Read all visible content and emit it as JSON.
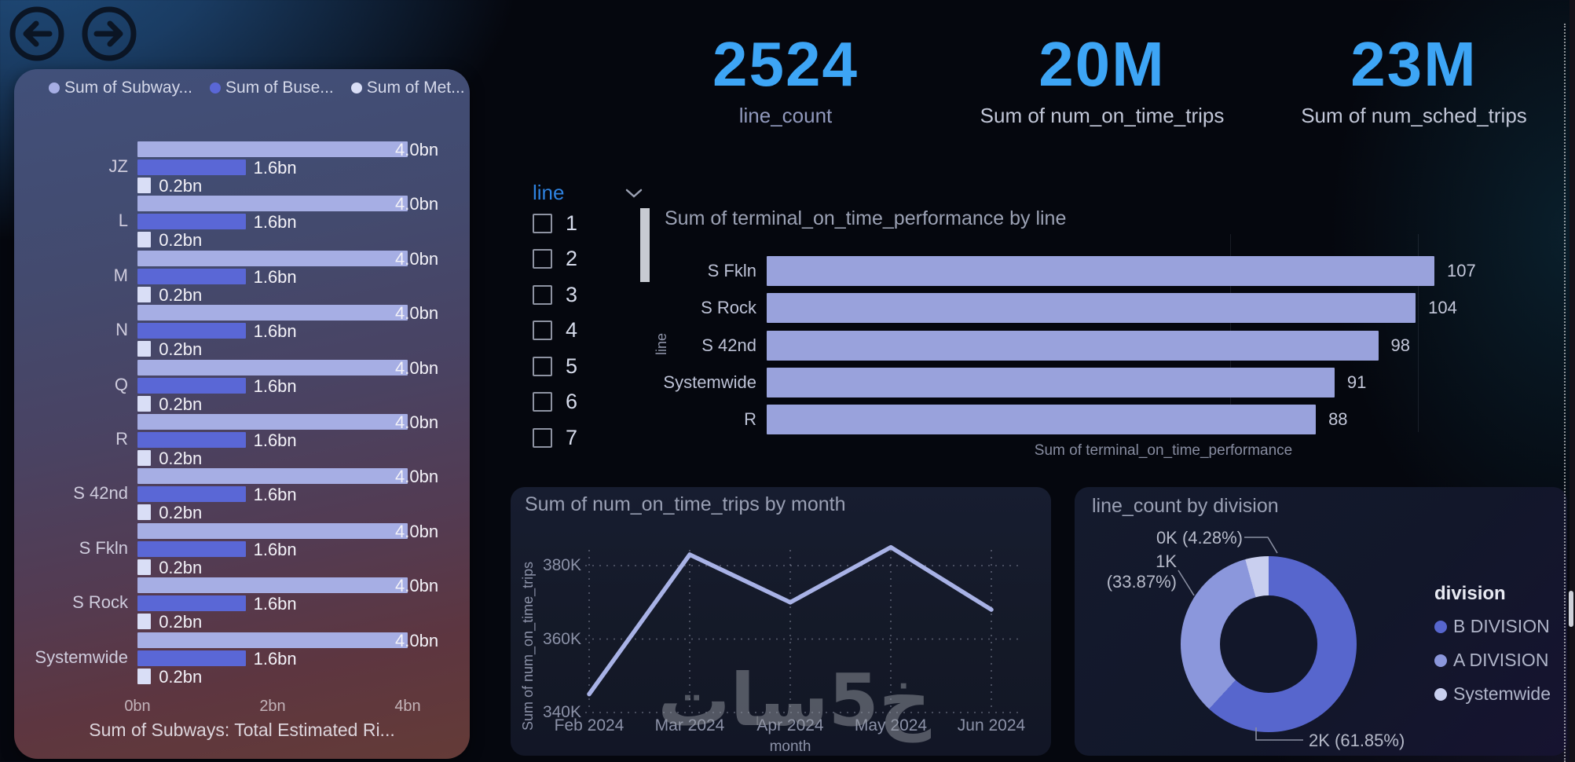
{
  "nav": {
    "back_icon": "arrow-left-circle-icon",
    "forward_icon": "arrow-right-circle-icon"
  },
  "kpis": [
    {
      "value": "2524",
      "label": "line_count"
    },
    {
      "value": "20M",
      "label": "Sum of num_on_time_trips"
    },
    {
      "value": "23M",
      "label": "Sum of num_sched_trips"
    }
  ],
  "slicer": {
    "title": "line",
    "chevron_icon": "chevron-down-icon",
    "items": [
      "1",
      "2",
      "3",
      "4",
      "5",
      "6",
      "7"
    ]
  },
  "watermark": "خ5سات",
  "colors": {
    "kpi_value": "#3da5f5",
    "slicer_title": "#2e82e0",
    "terminal_bar": "#99a2dc",
    "trips_line": "#a8b2e6"
  },
  "chart_data": [
    {
      "type": "bar",
      "orientation": "horizontal",
      "categories": [
        "JZ",
        "L",
        "M",
        "N",
        "Q",
        "R",
        "S 42nd",
        "S Fkln",
        "S Rock",
        "Systemwide"
      ],
      "series": [
        {
          "name": "Sum of Subway...",
          "color": "#a6aee4",
          "values": [
            4.0,
            4.0,
            4.0,
            4.0,
            4.0,
            4.0,
            4.0,
            4.0,
            4.0,
            4.0
          ]
        },
        {
          "name": "Sum of Buse...",
          "color": "#5a67d6",
          "values": [
            1.6,
            1.6,
            1.6,
            1.6,
            1.6,
            1.6,
            1.6,
            1.6,
            1.6,
            1.6
          ]
        },
        {
          "name": "Sum of Met...",
          "color": "#d9def6",
          "values": [
            0.2,
            0.2,
            0.2,
            0.2,
            0.2,
            0.2,
            0.2,
            0.2,
            0.2,
            0.2
          ]
        }
      ],
      "value_suffix": "bn",
      "xticks": [
        "0bn",
        "2bn",
        "4bn"
      ],
      "xlim": [
        0,
        4.9
      ],
      "xlabel": "Sum of Subways: Total Estimated Ri...",
      "grid": false,
      "legend_position": "top"
    },
    {
      "type": "bar",
      "orientation": "horizontal",
      "title": "Sum of terminal_on_time_performance by line",
      "categories": [
        "S Fkln",
        "S Rock",
        "S 42nd",
        "Systemwide",
        "R"
      ],
      "values": [
        107,
        104,
        98,
        91,
        88
      ],
      "xlabel": "Sum of terminal_on_time_performance",
      "ylabel": "line",
      "xlim": [
        0,
        128
      ],
      "grid": true
    },
    {
      "type": "line",
      "title": "Sum of num_on_time_trips by month",
      "x": [
        "Feb 2024",
        "Mar 2024",
        "Apr 2024",
        "May 2024",
        "Jun 2024"
      ],
      "y": [
        345000,
        383000,
        370000,
        385000,
        368000
      ],
      "yticks": [
        "340K",
        "360K",
        "380K"
      ],
      "ytick_values": [
        340000,
        360000,
        380000
      ],
      "ylim": [
        340000,
        380000
      ],
      "xlabel": "month",
      "ylabel": "Sum of num_on_time_trips",
      "grid": true
    },
    {
      "type": "pie",
      "title": "line_count by division",
      "legend_title": "division",
      "slices": [
        {
          "name": "B DIVISION",
          "value_label": "2K",
          "pct": 61.85,
          "color": "#5766cd"
        },
        {
          "name": "A DIVISION",
          "value_label": "1K",
          "pct": 33.87,
          "color": "#8b97dc"
        },
        {
          "name": "Systemwide",
          "value_label": "0K",
          "pct": 4.28,
          "color": "#c9cfef"
        }
      ],
      "labels": [
        "0K (4.28%)",
        "1K\n(33.87%)",
        "2K (61.85%)"
      ],
      "legend_position": "right"
    }
  ]
}
